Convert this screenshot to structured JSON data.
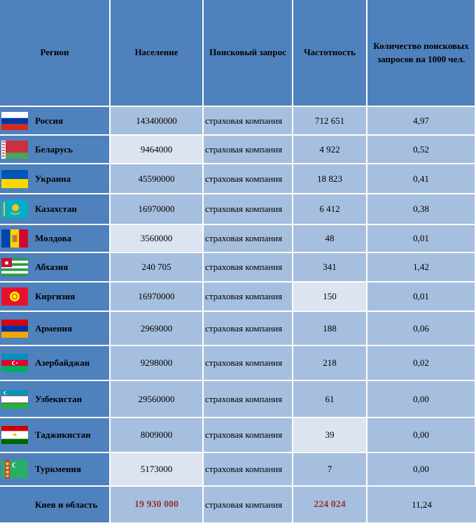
{
  "headers": {
    "region": "Регион",
    "population": "Население",
    "query": "Поисковый запрос",
    "frequency": "Частотность",
    "per1000": "Количество поисковых запросов на 1000 чел."
  },
  "rows": [
    {
      "region": "Россия",
      "flag": "russia-flag-icon",
      "population": "143400000",
      "query": "страховая компания",
      "frequency": "712 651",
      "per1000": "4,97"
    },
    {
      "region": "Беларусь",
      "flag": "belarus-flag-icon",
      "population": "9464000",
      "query": "страховая компания",
      "frequency": "4 922",
      "per1000": "0,52"
    },
    {
      "region": "Украина",
      "flag": "ukraine-flag-icon",
      "population": "45590000",
      "query": "страховая компания",
      "frequency": "18 823",
      "per1000": "0,41"
    },
    {
      "region": "Казахстан",
      "flag": "kazakhstan-flag-icon",
      "population": "16970000",
      "query": "страховая компания",
      "frequency": "6 412",
      "per1000": "0,38"
    },
    {
      "region": "Молдова",
      "flag": "moldova-flag-icon",
      "population": "3560000",
      "query": "страховая компания",
      "frequency": "48",
      "per1000": "0,01"
    },
    {
      "region": "Абхазия",
      "flag": "abkhazia-flag-icon",
      "population": "240 705",
      "query": "страховая компания",
      "frequency": "341",
      "per1000": "1,42"
    },
    {
      "region": "Киргизия",
      "flag": "kyrgyzstan-flag-icon",
      "population": "16970000",
      "query": "страховая компания",
      "frequency": "150",
      "per1000": "0,01"
    },
    {
      "region": "Армения",
      "flag": "armenia-flag-icon",
      "population": "2969000",
      "query": "страховая компания",
      "frequency": "188",
      "per1000": "0,06"
    },
    {
      "region": "Азербайджан",
      "flag": "azerbaijan-flag-icon",
      "population": "9298000",
      "query": "страховая компания",
      "frequency": "218",
      "per1000": "0,02"
    },
    {
      "region": "Узбекистан",
      "flag": "uzbekistan-flag-icon",
      "population": "29560000",
      "query": "страховая компания",
      "frequency": "61",
      "per1000": "0,00"
    },
    {
      "region": "Таджикистан",
      "flag": "tajikistan-flag-icon",
      "population": "8009000",
      "query": "страховая компания",
      "frequency": "39",
      "per1000": "0,00"
    },
    {
      "region": "Туркмения",
      "flag": "turkmenistan-flag-icon",
      "population": "5173000",
      "query": "страховая компания",
      "frequency": "7",
      "per1000": "0,00"
    },
    {
      "region": "Киев и область",
      "flag": "",
      "population": "19 930 000",
      "query": "страховая компания",
      "frequency": "224 024",
      "per1000": "11,24"
    }
  ],
  "colors": {
    "header_bg": "#4f81bd",
    "cell_a": "#a7bfde",
    "cell_b": "#dbe4f0",
    "highlight_text": "#953735"
  }
}
